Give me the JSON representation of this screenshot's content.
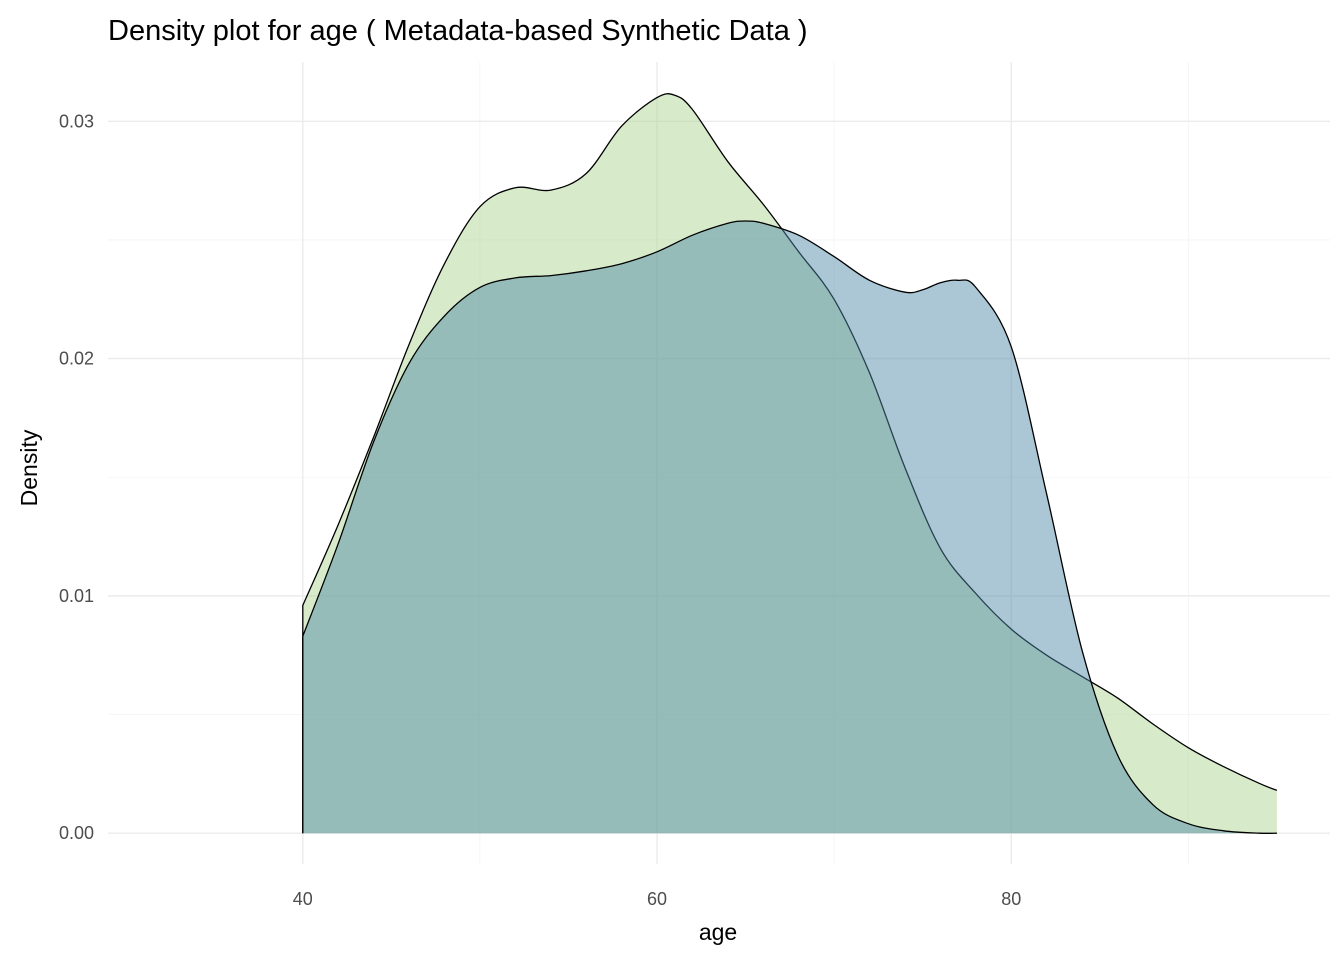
{
  "chart_data": {
    "type": "area",
    "title": "Density plot for age ( Metadata-based Synthetic Data )",
    "xlabel": "age",
    "ylabel": "Density",
    "xlim": [
      29,
      98
    ],
    "ylim": [
      -0.0013,
      0.0325
    ],
    "x_ticks": [
      40,
      60,
      80
    ],
    "x_tick_labels": [
      "40",
      "60",
      "80"
    ],
    "x_minor_ticks": [
      50,
      70,
      90
    ],
    "y_ticks": [
      0.0,
      0.01,
      0.02,
      0.03
    ],
    "y_tick_labels": [
      "0.00",
      "0.01",
      "0.02",
      "0.03"
    ],
    "y_minor_ticks": [
      0.005,
      0.015,
      0.025
    ],
    "grid": true,
    "legend": "none",
    "series": [
      {
        "fill": "#b2d99b",
        "fill_opacity": 0.52,
        "x": [
          40,
          42,
          44,
          46,
          48,
          50,
          52,
          54,
          56,
          58,
          60,
          61,
          62,
          64,
          66,
          68,
          70,
          72,
          74,
          76,
          78,
          80,
          82,
          84,
          86,
          88,
          90,
          92,
          94,
          95
        ],
        "y": [
          0.0096,
          0.013,
          0.0167,
          0.0206,
          0.024,
          0.0264,
          0.0272,
          0.0271,
          0.0278,
          0.0298,
          0.031,
          0.0311,
          0.0305,
          0.0283,
          0.0265,
          0.0245,
          0.0225,
          0.0194,
          0.0154,
          0.012,
          0.0101,
          0.0086,
          0.0075,
          0.0066,
          0.0057,
          0.0046,
          0.0036,
          0.0028,
          0.0021,
          0.0018
        ]
      },
      {
        "fill": "#4f87a8",
        "fill_opacity": 0.48,
        "x": [
          40,
          42,
          44,
          46,
          48,
          50,
          52,
          54,
          56,
          58,
          60,
          62,
          64,
          65,
          66,
          68,
          70,
          72,
          74,
          75,
          76,
          77,
          78,
          80,
          82,
          84,
          86,
          88,
          90,
          92,
          94,
          95
        ],
        "y": [
          0.0083,
          0.0122,
          0.0165,
          0.0198,
          0.0218,
          0.023,
          0.0234,
          0.0235,
          0.0237,
          0.024,
          0.0245,
          0.0252,
          0.0257,
          0.0258,
          0.0257,
          0.0252,
          0.0243,
          0.0233,
          0.0228,
          0.0229,
          0.0232,
          0.0233,
          0.023,
          0.0205,
          0.0143,
          0.0077,
          0.0033,
          0.0012,
          0.0004,
          0.0001,
          0.0,
          0.0
        ]
      }
    ]
  }
}
